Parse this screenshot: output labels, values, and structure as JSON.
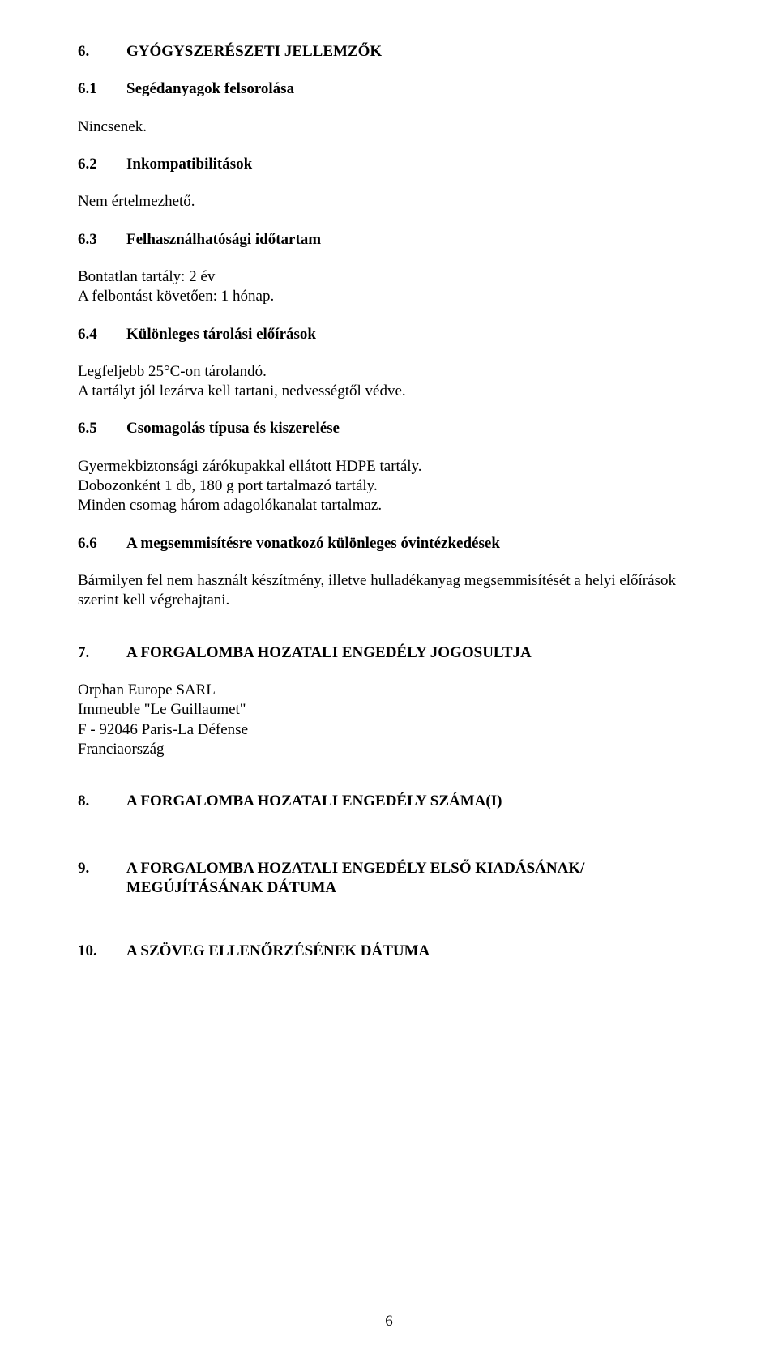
{
  "page": {
    "number": "6",
    "font_family": "Times New Roman",
    "text_color": "#000000",
    "background_color": "#ffffff"
  },
  "s6": {
    "num": "6.",
    "title": "GYÓGYSZERÉSZETI JELLEMZŐK",
    "s6_1": {
      "num": "6.1",
      "title": "Segédanyagok felsorolása",
      "body": "Nincsenek."
    },
    "s6_2": {
      "num": "6.2",
      "title": "Inkompatibilitások",
      "body": "Nem értelmezhető."
    },
    "s6_3": {
      "num": "6.3",
      "title": "Felhasználhatósági időtartam",
      "line1": "Bontatlan tartály: 2 év",
      "line2": "A felbontást követően: 1 hónap."
    },
    "s6_4": {
      "num": "6.4",
      "title": "Különleges tárolási előírások",
      "line1": "Legfeljebb 25°C-on tárolandó.",
      "line2": "A tartályt jól lezárva kell tartani, nedvességtől védve."
    },
    "s6_5": {
      "num": "6.5",
      "title": "Csomagolás típusa és kiszerelése",
      "line1": "Gyermekbiztonsági zárókupakkal ellátott HDPE tartály.",
      "line2": "Dobozonként 1 db, 180 g port tartalmazó tartály.",
      "line3": "Minden csomag három adagolókanalat tartalmaz."
    },
    "s6_6": {
      "num": "6.6",
      "title": "A megsemmisítésre vonatkozó különleges óvintézkedések",
      "body": "Bármilyen fel nem használt készítmény, illetve hulladékanyag megsemmisítését a helyi előírások szerint kell végrehajtani."
    }
  },
  "s7": {
    "num": "7.",
    "title": "A FORGALOMBA HOZATALI ENGEDÉLY JOGOSULTJA",
    "line1": "Orphan Europe SARL",
    "line2": "Immeuble \"Le Guillaumet\"",
    "line3": "F - 92046 Paris-La Défense",
    "line4": "Franciaország"
  },
  "s8": {
    "num": "8.",
    "title": "A FORGALOMBA HOZATALI ENGEDÉLY SZÁMA(I)"
  },
  "s9": {
    "num": "9.",
    "title_line1": "A FORGALOMBA HOZATALI ENGEDÉLY ELSŐ KIADÁSÁNAK/",
    "title_line2": "MEGÚJÍTÁSÁNAK DÁTUMA"
  },
  "s10": {
    "num": "10.",
    "title": "A SZÖVEG ELLENŐRZÉSÉNEK DÁTUMA"
  }
}
